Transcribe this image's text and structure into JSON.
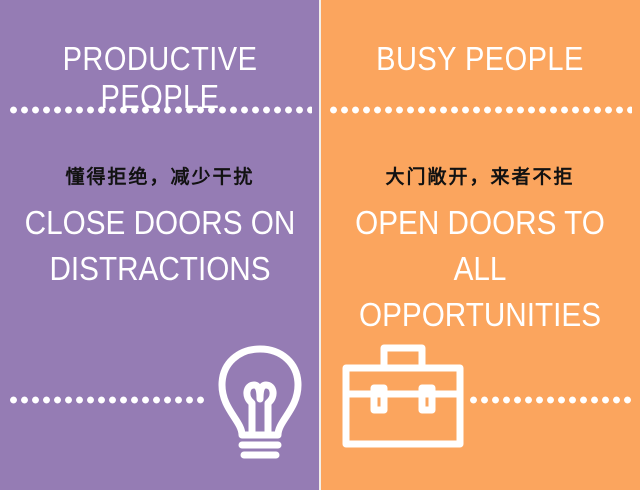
{
  "left": {
    "title": "PRODUCTIVE PEOPLE",
    "subtitle_zh": "懂得拒绝，减少干扰",
    "line1": "CLOSE DOORS ON",
    "line2": "DISTRACTIONS",
    "icon": "lightbulb-icon",
    "bg_color": "#957cb4"
  },
  "right": {
    "title": "BUSY PEOPLE",
    "subtitle_zh": "大门敞开，来者不拒",
    "line1": "OPEN DOORS TO",
    "line2": "ALL OPPORTUNITIES",
    "icon": "briefcase-icon",
    "bg_color": "#fba55e"
  },
  "colors": {
    "text": "#ffffff",
    "chinese_text": "#121212",
    "divider": "#f3efe9"
  }
}
